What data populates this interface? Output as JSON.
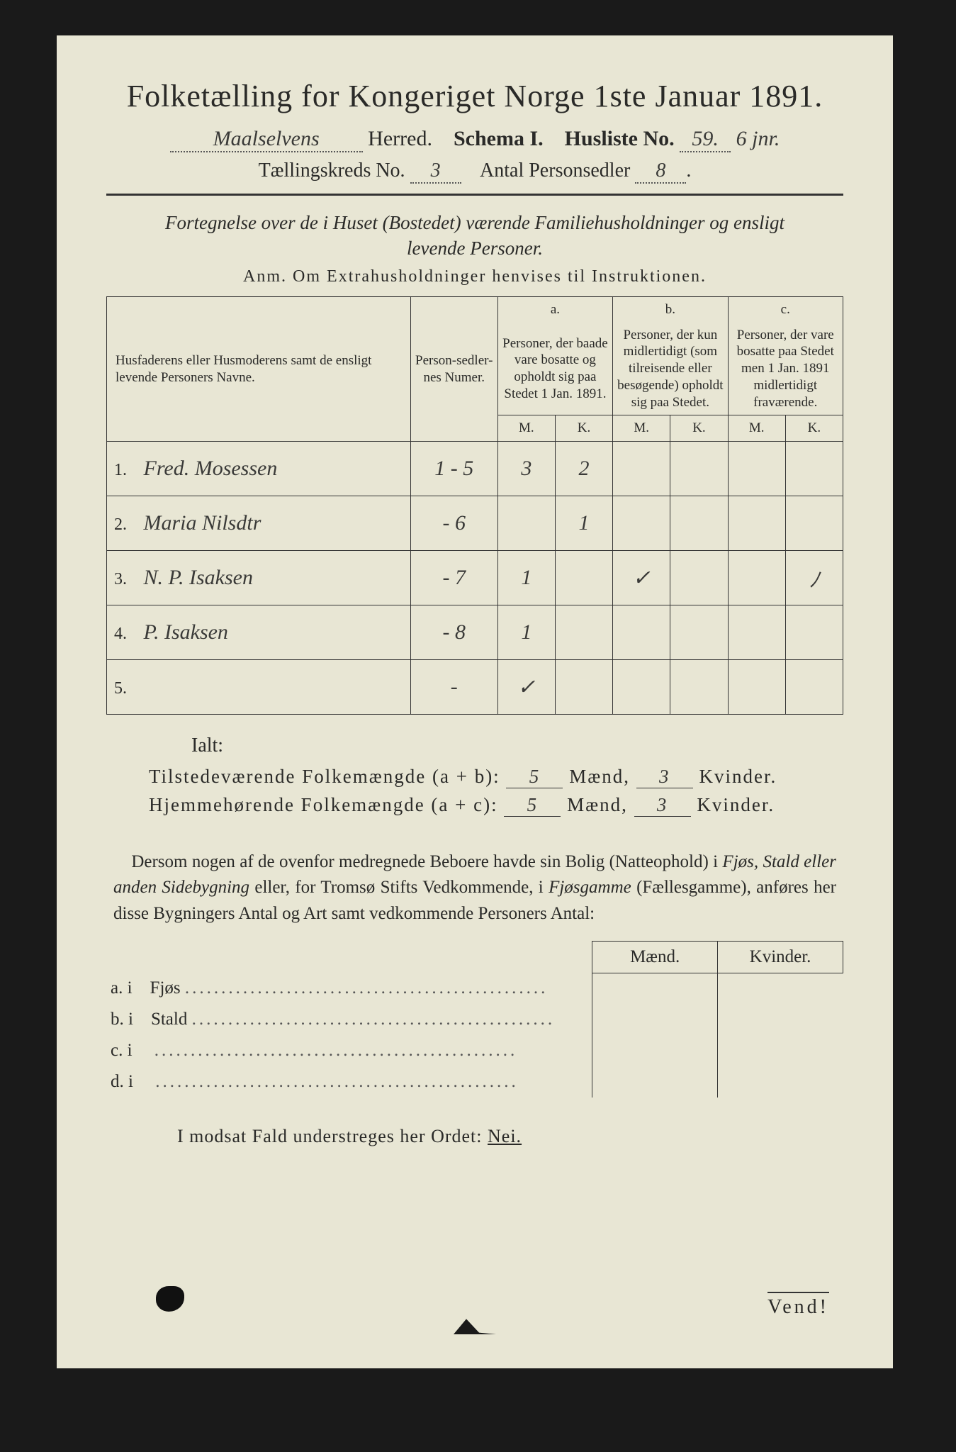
{
  "title": "Folketælling for Kongeriget Norge 1ste Januar 1891.",
  "herred_value": "Maalselvens",
  "herred_label": "Herred.",
  "schema_label": "Schema I.",
  "husliste_label": "Husliste No.",
  "husliste_value": "59.",
  "husliste_suffix": "6 jnr.",
  "kreds_label": "Tællingskreds No.",
  "kreds_value": "3",
  "antal_label": "Antal Personsedler",
  "antal_value": "8",
  "subtitle_line1": "Fortegnelse over de i Huset (Bostedet) værende Familiehusholdninger og ensligt",
  "subtitle_line2": "levende Personer.",
  "anm": "Anm.  Om Extrahusholdninger henvises til Instruktionen.",
  "table": {
    "col_name": "Husfaderens eller Husmoderens samt de ensligt levende Personers Navne.",
    "col_num": "Person-sedler-nes Numer.",
    "col_a_top": "a.",
    "col_a": "Personer, der baade vare bosatte og opholdt sig paa Stedet 1 Jan. 1891.",
    "col_b_top": "b.",
    "col_b": "Personer, der kun midlertidigt (som tilreisende eller besøgende) opholdt sig paa Stedet.",
    "col_c_top": "c.",
    "col_c": "Personer, der vare bosatte paa Stedet men 1 Jan. 1891 midlertidigt fraværende.",
    "mk_m": "M.",
    "mk_k": "K.",
    "rows": [
      {
        "n": "1.",
        "name": "Fred. Mosessen",
        "num": "1 - 5",
        "am": "3",
        "ak": "2",
        "bm": "",
        "bk": "",
        "cm": "",
        "ck": ""
      },
      {
        "n": "2.",
        "name": "Maria Nilsdtr",
        "num": "- 6",
        "am": "",
        "ak": "1",
        "bm": "",
        "bk": "",
        "cm": "",
        "ck": ""
      },
      {
        "n": "3.",
        "name": "N. P. Isaksen",
        "num": "- 7",
        "am": "1",
        "ak": "",
        "bm": "✓",
        "bk": "",
        "cm": "",
        "ck": "ﾉ"
      },
      {
        "n": "4.",
        "name": "P. Isaksen",
        "num": "- 8",
        "am": "1",
        "ak": "",
        "bm": "",
        "bk": "",
        "cm": "",
        "ck": ""
      },
      {
        "n": "5.",
        "name": "",
        "num": "-",
        "am": "✓",
        "ak": "",
        "bm": "",
        "bk": "",
        "cm": "",
        "ck": ""
      }
    ]
  },
  "ialt": "Ialt:",
  "tot1_label_a": "Tilstedeværende Folkemængde (a + b):",
  "tot2_label_a": "Hjemmehørende Folkemængde (a + c):",
  "tot_m": "5",
  "tot_k": "3",
  "maend": "Mænd,",
  "kvinder": "Kvinder.",
  "para": "Dersom nogen af de ovenfor medregnede Beboere havde sin Bolig (Natteophold) i Fjøs, Stald eller anden Sidebygning eller, for Tromsø Stifts Vedkommende, i Fjøsgamme (Fællesgamme), anføres her disse Bygningers Antal og Art samt vedkommende Personers Antal:",
  "bld": {
    "hdr_m": "Mænd.",
    "hdr_k": "Kvinder.",
    "rows": [
      {
        "lab": "a.  i",
        "txt": "Fjøs"
      },
      {
        "lab": "b.  i",
        "txt": "Stald"
      },
      {
        "lab": "c.  i",
        "txt": ""
      },
      {
        "lab": "d.  i",
        "txt": ""
      }
    ]
  },
  "modsat_a": "I modsat Fald understreges her Ordet:",
  "modsat_b": "Nei.",
  "vend": "Vend!",
  "colors": {
    "page_bg": "#e8e6d4",
    "outer_bg": "#1a1a1a",
    "ink": "#2a2a28",
    "rule": "#333333"
  },
  "typography": {
    "title_pt": 44,
    "body_pt": 25,
    "table_pt": 20,
    "script_family": "cursive"
  }
}
